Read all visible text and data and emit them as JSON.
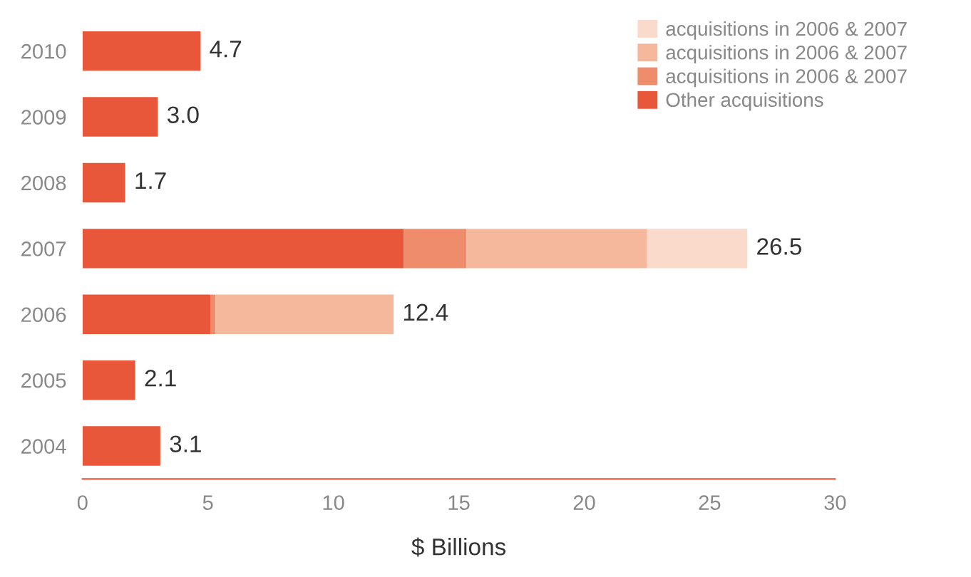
{
  "chart_data": {
    "type": "bar",
    "orientation": "horizontal",
    "stacked": true,
    "xlabel": "$ Billions",
    "categories": [
      "2010",
      "2009",
      "2008",
      "2007",
      "2006",
      "2005",
      "2004"
    ],
    "series": [
      {
        "name": "Other acquisitions",
        "color": "#e8573a",
        "values": [
          4.7,
          3.0,
          1.7,
          12.8,
          5.1,
          2.1,
          3.1
        ]
      },
      {
        "name": "acquisitions in 2006 & 2007",
        "color": "#ef8c6b",
        "values": [
          null,
          null,
          null,
          2.5,
          0.2,
          null,
          null
        ]
      },
      {
        "name": "acquisitions in 2006 & 2007",
        "color": "#f5b89c",
        "values": [
          null,
          null,
          null,
          7.2,
          7.1,
          null,
          null
        ]
      },
      {
        "name": "acquisitions in 2006 & 2007",
        "color": "#fadacb",
        "values": [
          null,
          null,
          null,
          4.0,
          null,
          null,
          null
        ]
      }
    ],
    "totals": [
      "4.7",
      "3.0",
      "1.7",
      "26.5",
      "12.4",
      "2.1",
      "3.1"
    ],
    "xlim": [
      0,
      30
    ],
    "xticks": [
      0,
      5,
      10,
      15,
      20,
      25,
      30
    ],
    "grid": false,
    "legend": "top right"
  }
}
